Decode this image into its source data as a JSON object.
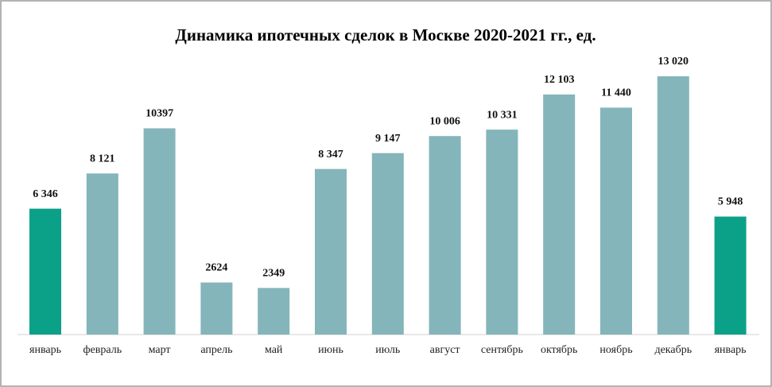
{
  "chart_data": {
    "type": "bar",
    "title": "Динамика ипотечных сделок в Москве 2020-2021 гг., ед.",
    "categories": [
      "январь",
      "февраль",
      "март",
      "апрель",
      "май",
      "июнь",
      "июль",
      "август",
      "сентябрь",
      "октябрь",
      "ноябрь",
      "декабрь",
      "январь"
    ],
    "values": [
      6346,
      8121,
      10397,
      2624,
      2349,
      8347,
      9147,
      10006,
      10331,
      12103,
      11440,
      13020,
      5948
    ],
    "value_labels": [
      "6 346",
      "8 121",
      "10397",
      "2624",
      "2349",
      "8 347",
      "9 147",
      "10 006",
      "10 331",
      "12 103",
      "11 440",
      "13 020",
      "5 948"
    ],
    "colors": [
      "#0ba189",
      "#84b5ba",
      "#84b5ba",
      "#84b5ba",
      "#84b5ba",
      "#84b5ba",
      "#84b5ba",
      "#84b5ba",
      "#84b5ba",
      "#84b5ba",
      "#84b5ba",
      "#84b5ba",
      "#0ba189"
    ]
  }
}
